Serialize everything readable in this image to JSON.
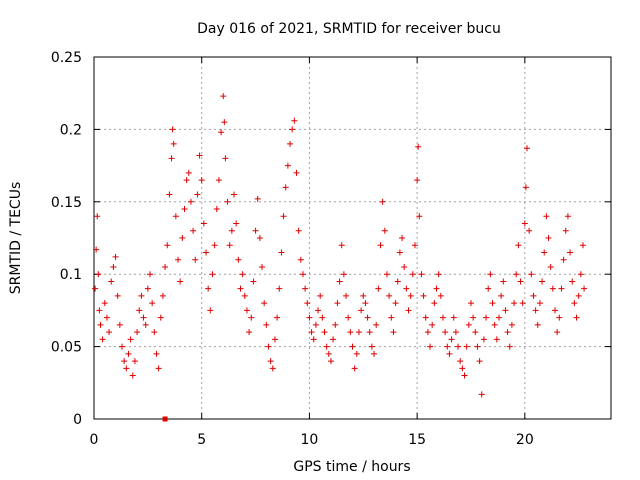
{
  "chart_data": {
    "type": "scatter",
    "title": "Day 016 of 2021, SRMTID for receiver bucu",
    "xlabel": "GPS time / hours",
    "ylabel": "SRMTID / TECUs",
    "xlim": [
      0,
      24
    ],
    "ylim": [
      0,
      0.25
    ],
    "xticks": [
      0,
      5,
      10,
      15,
      20
    ],
    "xtick_labels": [
      "0",
      "5",
      "10",
      "15",
      "20"
    ],
    "yticks": [
      0,
      0.05,
      0.1,
      0.15,
      0.2,
      0.25
    ],
    "ytick_labels": [
      "0",
      "0.05",
      "0.1",
      "0.15",
      "0.2",
      "0.25"
    ],
    "grid": true,
    "marker": "+",
    "color": "#e00000",
    "outlier_marker": {
      "x": 3.3,
      "y": 0.0,
      "shape": "square"
    },
    "series": [
      {
        "name": "SRMTID",
        "points": [
          [
            0.05,
            0.09
          ],
          [
            0.1,
            0.117
          ],
          [
            0.15,
            0.14
          ],
          [
            0.2,
            0.1
          ],
          [
            0.25,
            0.075
          ],
          [
            0.3,
            0.065
          ],
          [
            0.4,
            0.055
          ],
          [
            0.5,
            0.08
          ],
          [
            0.6,
            0.07
          ],
          [
            0.7,
            0.06
          ],
          [
            0.8,
            0.095
          ],
          [
            0.9,
            0.105
          ],
          [
            1.0,
            0.112
          ],
          [
            1.1,
            0.085
          ],
          [
            1.2,
            0.065
          ],
          [
            1.3,
            0.05
          ],
          [
            1.4,
            0.04
          ],
          [
            1.5,
            0.035
          ],
          [
            1.6,
            0.045
          ],
          [
            1.7,
            0.055
          ],
          [
            1.8,
            0.03
          ],
          [
            1.9,
            0.04
          ],
          [
            2.0,
            0.06
          ],
          [
            2.1,
            0.075
          ],
          [
            2.2,
            0.085
          ],
          [
            2.3,
            0.07
          ],
          [
            2.4,
            0.065
          ],
          [
            2.5,
            0.09
          ],
          [
            2.6,
            0.1
          ],
          [
            2.7,
            0.08
          ],
          [
            2.8,
            0.06
          ],
          [
            2.9,
            0.045
          ],
          [
            3.0,
            0.035
          ],
          [
            3.1,
            0.07
          ],
          [
            3.2,
            0.085
          ],
          [
            3.3,
            0.105
          ],
          [
            3.4,
            0.12
          ],
          [
            3.5,
            0.155
          ],
          [
            3.6,
            0.18
          ],
          [
            3.65,
            0.2
          ],
          [
            3.7,
            0.19
          ],
          [
            3.8,
            0.14
          ],
          [
            3.9,
            0.11
          ],
          [
            4.0,
            0.095
          ],
          [
            4.1,
            0.125
          ],
          [
            4.2,
            0.145
          ],
          [
            4.3,
            0.165
          ],
          [
            4.4,
            0.17
          ],
          [
            4.5,
            0.15
          ],
          [
            4.6,
            0.13
          ],
          [
            4.7,
            0.11
          ],
          [
            4.8,
            0.155
          ],
          [
            4.9,
            0.182
          ],
          [
            5.0,
            0.165
          ],
          [
            5.1,
            0.135
          ],
          [
            5.2,
            0.115
          ],
          [
            5.3,
            0.09
          ],
          [
            5.4,
            0.075
          ],
          [
            5.5,
            0.1
          ],
          [
            5.6,
            0.12
          ],
          [
            5.7,
            0.145
          ],
          [
            5.8,
            0.165
          ],
          [
            5.9,
            0.198
          ],
          [
            6.0,
            0.223
          ],
          [
            6.05,
            0.205
          ],
          [
            6.1,
            0.18
          ],
          [
            6.2,
            0.15
          ],
          [
            6.3,
            0.12
          ],
          [
            6.4,
            0.13
          ],
          [
            6.5,
            0.155
          ],
          [
            6.6,
            0.135
          ],
          [
            6.7,
            0.11
          ],
          [
            6.8,
            0.09
          ],
          [
            6.9,
            0.1
          ],
          [
            7.0,
            0.085
          ],
          [
            7.1,
            0.075
          ],
          [
            7.2,
            0.06
          ],
          [
            7.3,
            0.07
          ],
          [
            7.4,
            0.095
          ],
          [
            7.5,
            0.13
          ],
          [
            7.6,
            0.152
          ],
          [
            7.7,
            0.125
          ],
          [
            7.8,
            0.105
          ],
          [
            7.9,
            0.08
          ],
          [
            8.0,
            0.065
          ],
          [
            8.1,
            0.05
          ],
          [
            8.2,
            0.04
          ],
          [
            8.3,
            0.035
          ],
          [
            8.4,
            0.055
          ],
          [
            8.5,
            0.07
          ],
          [
            8.6,
            0.09
          ],
          [
            8.7,
            0.115
          ],
          [
            8.8,
            0.14
          ],
          [
            8.9,
            0.16
          ],
          [
            9.0,
            0.175
          ],
          [
            9.1,
            0.19
          ],
          [
            9.2,
            0.2
          ],
          [
            9.3,
            0.206
          ],
          [
            9.4,
            0.17
          ],
          [
            9.5,
            0.13
          ],
          [
            9.6,
            0.11
          ],
          [
            9.7,
            0.1
          ],
          [
            9.8,
            0.09
          ],
          [
            9.9,
            0.08
          ],
          [
            10.0,
            0.07
          ],
          [
            10.1,
            0.06
          ],
          [
            10.2,
            0.055
          ],
          [
            10.3,
            0.065
          ],
          [
            10.4,
            0.075
          ],
          [
            10.5,
            0.085
          ],
          [
            10.6,
            0.07
          ],
          [
            10.7,
            0.06
          ],
          [
            10.8,
            0.05
          ],
          [
            10.9,
            0.045
          ],
          [
            11.0,
            0.04
          ],
          [
            11.1,
            0.055
          ],
          [
            11.2,
            0.065
          ],
          [
            11.3,
            0.08
          ],
          [
            11.4,
            0.095
          ],
          [
            11.5,
            0.12
          ],
          [
            11.6,
            0.1
          ],
          [
            11.7,
            0.085
          ],
          [
            11.8,
            0.07
          ],
          [
            11.9,
            0.06
          ],
          [
            12.0,
            0.05
          ],
          [
            12.1,
            0.035
          ],
          [
            12.2,
            0.045
          ],
          [
            12.3,
            0.06
          ],
          [
            12.4,
            0.075
          ],
          [
            12.5,
            0.085
          ],
          [
            12.6,
            0.08
          ],
          [
            12.7,
            0.07
          ],
          [
            12.8,
            0.06
          ],
          [
            12.9,
            0.05
          ],
          [
            13.0,
            0.045
          ],
          [
            13.1,
            0.065
          ],
          [
            13.2,
            0.09
          ],
          [
            13.3,
            0.12
          ],
          [
            13.4,
            0.15
          ],
          [
            13.5,
            0.13
          ],
          [
            13.6,
            0.1
          ],
          [
            13.7,
            0.085
          ],
          [
            13.8,
            0.07
          ],
          [
            13.9,
            0.06
          ],
          [
            14.0,
            0.08
          ],
          [
            14.1,
            0.095
          ],
          [
            14.2,
            0.115
          ],
          [
            14.3,
            0.125
          ],
          [
            14.4,
            0.105
          ],
          [
            14.5,
            0.09
          ],
          [
            14.6,
            0.075
          ],
          [
            14.7,
            0.085
          ],
          [
            14.8,
            0.1
          ],
          [
            14.9,
            0.12
          ],
          [
            15.0,
            0.165
          ],
          [
            15.05,
            0.188
          ],
          [
            15.1,
            0.14
          ],
          [
            15.2,
            0.1
          ],
          [
            15.3,
            0.085
          ],
          [
            15.4,
            0.07
          ],
          [
            15.5,
            0.06
          ],
          [
            15.6,
            0.05
          ],
          [
            15.7,
            0.065
          ],
          [
            15.8,
            0.08
          ],
          [
            15.9,
            0.09
          ],
          [
            16.0,
            0.1
          ],
          [
            16.1,
            0.085
          ],
          [
            16.2,
            0.07
          ],
          [
            16.3,
            0.06
          ],
          [
            16.4,
            0.05
          ],
          [
            16.5,
            0.045
          ],
          [
            16.6,
            0.055
          ],
          [
            16.7,
            0.07
          ],
          [
            16.8,
            0.06
          ],
          [
            16.9,
            0.05
          ],
          [
            17.0,
            0.04
          ],
          [
            17.1,
            0.035
          ],
          [
            17.2,
            0.03
          ],
          [
            17.3,
            0.05
          ],
          [
            17.4,
            0.065
          ],
          [
            17.5,
            0.08
          ],
          [
            17.6,
            0.07
          ],
          [
            17.7,
            0.06
          ],
          [
            17.8,
            0.05
          ],
          [
            17.9,
            0.04
          ],
          [
            18.0,
            0.017
          ],
          [
            18.1,
            0.055
          ],
          [
            18.2,
            0.07
          ],
          [
            18.3,
            0.09
          ],
          [
            18.4,
            0.1
          ],
          [
            18.5,
            0.08
          ],
          [
            18.6,
            0.065
          ],
          [
            18.7,
            0.055
          ],
          [
            18.8,
            0.07
          ],
          [
            18.9,
            0.085
          ],
          [
            19.0,
            0.095
          ],
          [
            19.1,
            0.075
          ],
          [
            19.2,
            0.06
          ],
          [
            19.3,
            0.05
          ],
          [
            19.4,
            0.065
          ],
          [
            19.5,
            0.08
          ],
          [
            19.6,
            0.1
          ],
          [
            19.7,
            0.12
          ],
          [
            19.8,
            0.095
          ],
          [
            19.9,
            0.08
          ],
          [
            20.0,
            0.135
          ],
          [
            20.05,
            0.16
          ],
          [
            20.1,
            0.187
          ],
          [
            20.2,
            0.13
          ],
          [
            20.3,
            0.1
          ],
          [
            20.4,
            0.085
          ],
          [
            20.5,
            0.075
          ],
          [
            20.6,
            0.065
          ],
          [
            20.7,
            0.08
          ],
          [
            20.8,
            0.095
          ],
          [
            20.9,
            0.115
          ],
          [
            21.0,
            0.14
          ],
          [
            21.1,
            0.125
          ],
          [
            21.2,
            0.105
          ],
          [
            21.3,
            0.09
          ],
          [
            21.4,
            0.075
          ],
          [
            21.5,
            0.06
          ],
          [
            21.6,
            0.07
          ],
          [
            21.7,
            0.09
          ],
          [
            21.8,
            0.11
          ],
          [
            21.9,
            0.13
          ],
          [
            22.0,
            0.14
          ],
          [
            22.1,
            0.115
          ],
          [
            22.2,
            0.095
          ],
          [
            22.3,
            0.08
          ],
          [
            22.4,
            0.07
          ],
          [
            22.5,
            0.085
          ],
          [
            22.6,
            0.1
          ],
          [
            22.7,
            0.12
          ],
          [
            22.75,
            0.09
          ]
        ]
      }
    ]
  }
}
